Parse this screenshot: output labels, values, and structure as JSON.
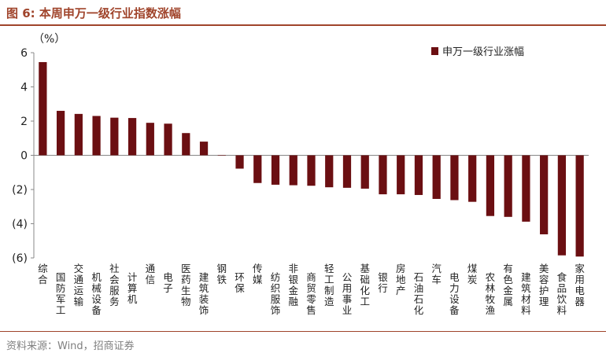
{
  "header": {
    "title": "图 6:  本周申万一级行业指数涨幅"
  },
  "footer": {
    "source": "资料来源：Wind，招商证券"
  },
  "colors": {
    "accent": "#a0442b",
    "bar": "#6b0f12"
  },
  "chart_data": {
    "type": "bar",
    "title": "图 6:  本周申万一级行业指数涨幅",
    "ylabel": "（%）",
    "xlabel": "",
    "ylim": [
      -6,
      6
    ],
    "yticks": [
      6,
      4,
      2,
      0,
      -2,
      -4,
      -6
    ],
    "ytick_labels": [
      "6",
      "4",
      "2",
      "0",
      "(2)",
      "(4)",
      "(6)"
    ],
    "legend": {
      "position": "top-right",
      "entries": [
        "申万一级行业涨幅"
      ]
    },
    "grid": false,
    "categories": [
      "综合",
      "国防军工",
      "交通运输",
      "机械设备",
      "社会服务",
      "计算机",
      "通信",
      "电子",
      "医药生物",
      "建筑装饰",
      "钢铁",
      "环保",
      "传媒",
      "纺织服饰",
      "非银金融",
      "商贸零售",
      "轻工制造",
      "公用事业",
      "基础化工",
      "银行",
      "房地产",
      "石油石化",
      "汽车",
      "电力设备",
      "煤炭",
      "农林牧渔",
      "有色金属",
      "建筑材料",
      "美容护理",
      "食品饮料",
      "家用电器"
    ],
    "series": [
      {
        "name": "申万一级行业涨幅",
        "values": [
          5.45,
          2.6,
          2.42,
          2.3,
          2.2,
          2.18,
          1.9,
          1.85,
          1.3,
          0.8,
          0.02,
          -0.78,
          -1.62,
          -1.72,
          -1.75,
          -1.78,
          -1.87,
          -1.9,
          -1.95,
          -2.28,
          -2.28,
          -2.32,
          -2.55,
          -2.62,
          -2.72,
          -3.55,
          -3.6,
          -3.88,
          -4.62,
          -5.85,
          -5.92
        ]
      }
    ]
  }
}
